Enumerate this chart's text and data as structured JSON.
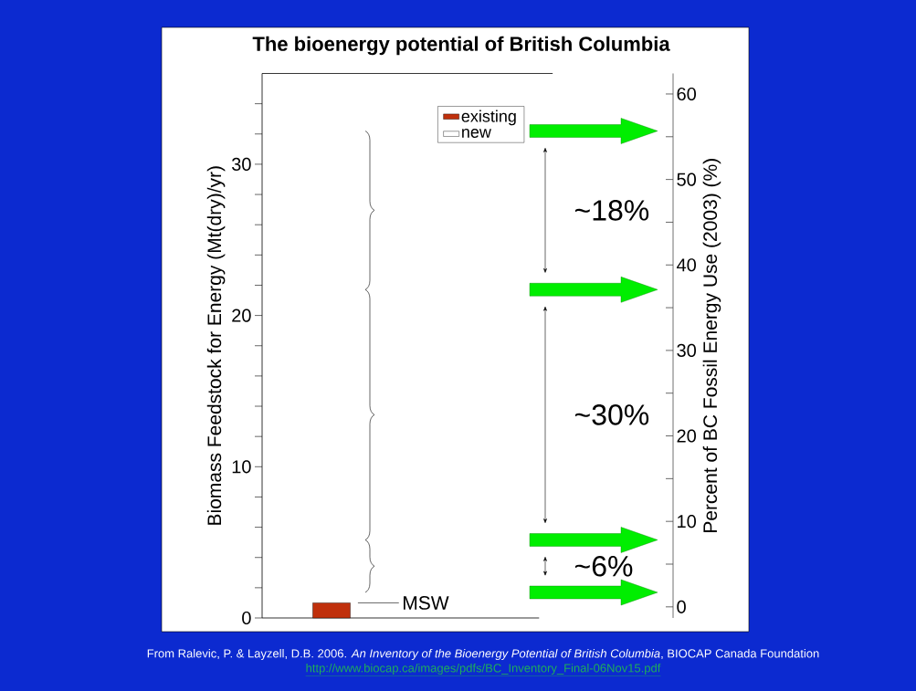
{
  "chart_data": {
    "type": "bar",
    "title": "The bioenergy potential of British Columbia",
    "ylabel": "Biomass Feedstock for Energy  (Mt(dry)/yr)",
    "y2label": "Percent of BC Fossil Energy Use (2003)  (%)",
    "categories": [
      null
    ],
    "series": [
      {
        "name": "existing",
        "color": "#c0300c",
        "values": [
          1
        ]
      },
      {
        "name": "new",
        "color": "#ffffff",
        "values": [
          null
        ]
      }
    ],
    "ylim": [
      0,
      36
    ],
    "yticks": [
      0,
      {
        "value": 2,
        "label": null
      },
      {
        "value": 4,
        "label": null
      },
      {
        "value": 6,
        "label": null
      },
      {
        "value": 8,
        "label": null
      },
      10,
      {
        "value": 12,
        "label": null
      },
      {
        "value": 14,
        "label": null
      },
      {
        "value": 16,
        "label": null
      },
      {
        "value": 18,
        "label": null
      },
      20,
      {
        "value": 22,
        "label": null
      },
      {
        "value": 24,
        "label": null
      },
      {
        "value": 26,
        "label": null
      },
      {
        "value": 28,
        "label": null
      },
      30,
      {
        "value": 32,
        "label": null
      },
      {
        "value": 34,
        "label": null
      }
    ],
    "y2lim": [
      -1.3,
      62.4
    ],
    "y2ticks": [
      0,
      10,
      20,
      30,
      40,
      50,
      60
    ],
    "annotations": [
      "MSW",
      "~18%",
      "~30%",
      "~6%",
      "From Ralevic, P. & Layzell, D.B. 2006. *An Inventory of the Bioenergy Potential of British Columbia*, BIOCAP Canada Foundation",
      "http://www.biocap.ca/images/pdfs/BC_Inventory_Final-06Nov15.pdf"
    ],
    "legend": "top right"
  }
}
